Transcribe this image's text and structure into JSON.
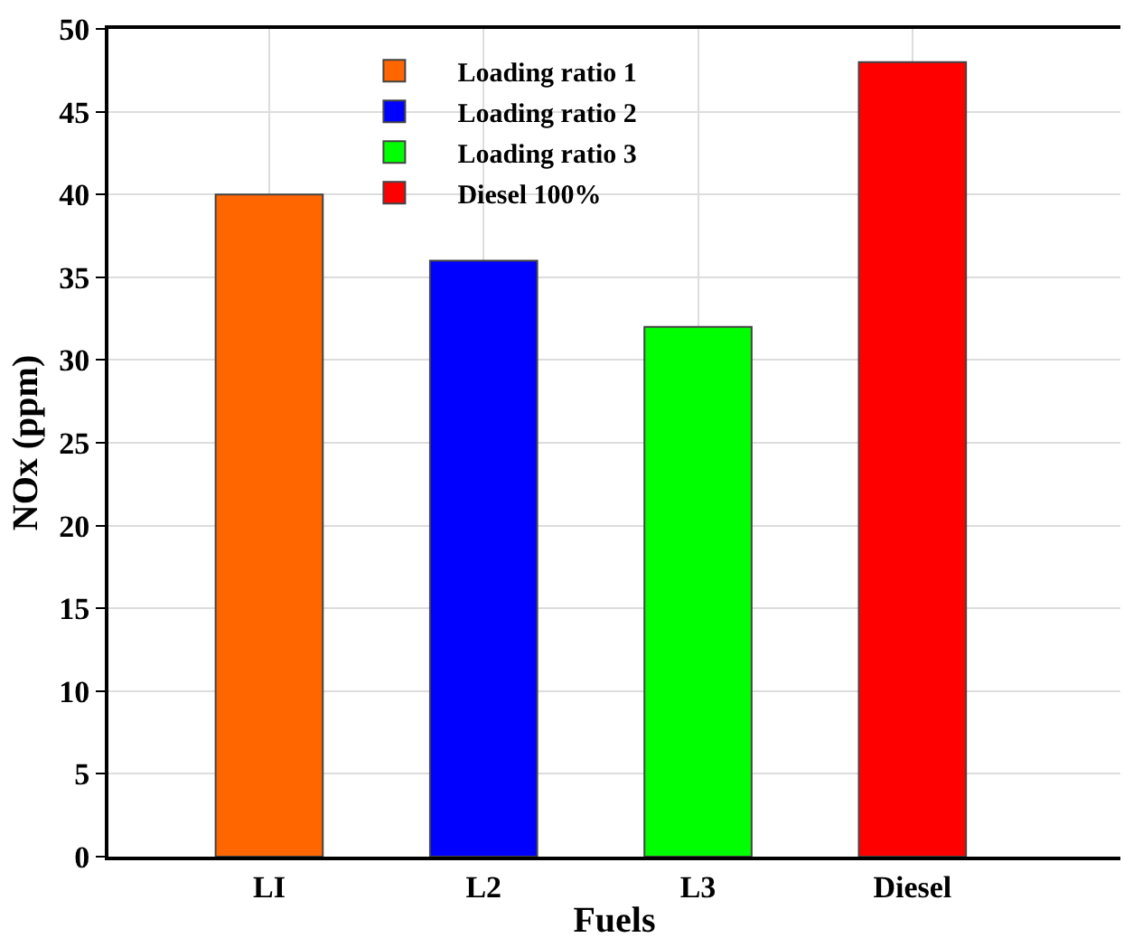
{
  "chart_data": {
    "type": "bar",
    "xlabel": "Fuels",
    "ylabel": "NOx (ppm)",
    "categories": [
      "LI",
      "L2",
      "L3",
      "Diesel"
    ],
    "series": [
      {
        "name": "Loading ratio 1",
        "color": "#ff6600",
        "values": [
          40,
          null,
          null,
          null
        ]
      },
      {
        "name": "Loading ratio 2",
        "color": "#0000ff",
        "values": [
          null,
          36,
          null,
          null
        ]
      },
      {
        "name": "Loading ratio 3",
        "color": "#00ff00",
        "values": [
          null,
          null,
          32,
          null
        ]
      },
      {
        "name": "Diesel 100%",
        "color": "#ff0000",
        "values": [
          null,
          null,
          null,
          48
        ]
      }
    ],
    "ylim": [
      0,
      50
    ],
    "yticks": [
      0,
      5,
      10,
      15,
      20,
      25,
      30,
      35,
      40,
      45,
      50
    ],
    "grid": true,
    "legend": "top"
  }
}
